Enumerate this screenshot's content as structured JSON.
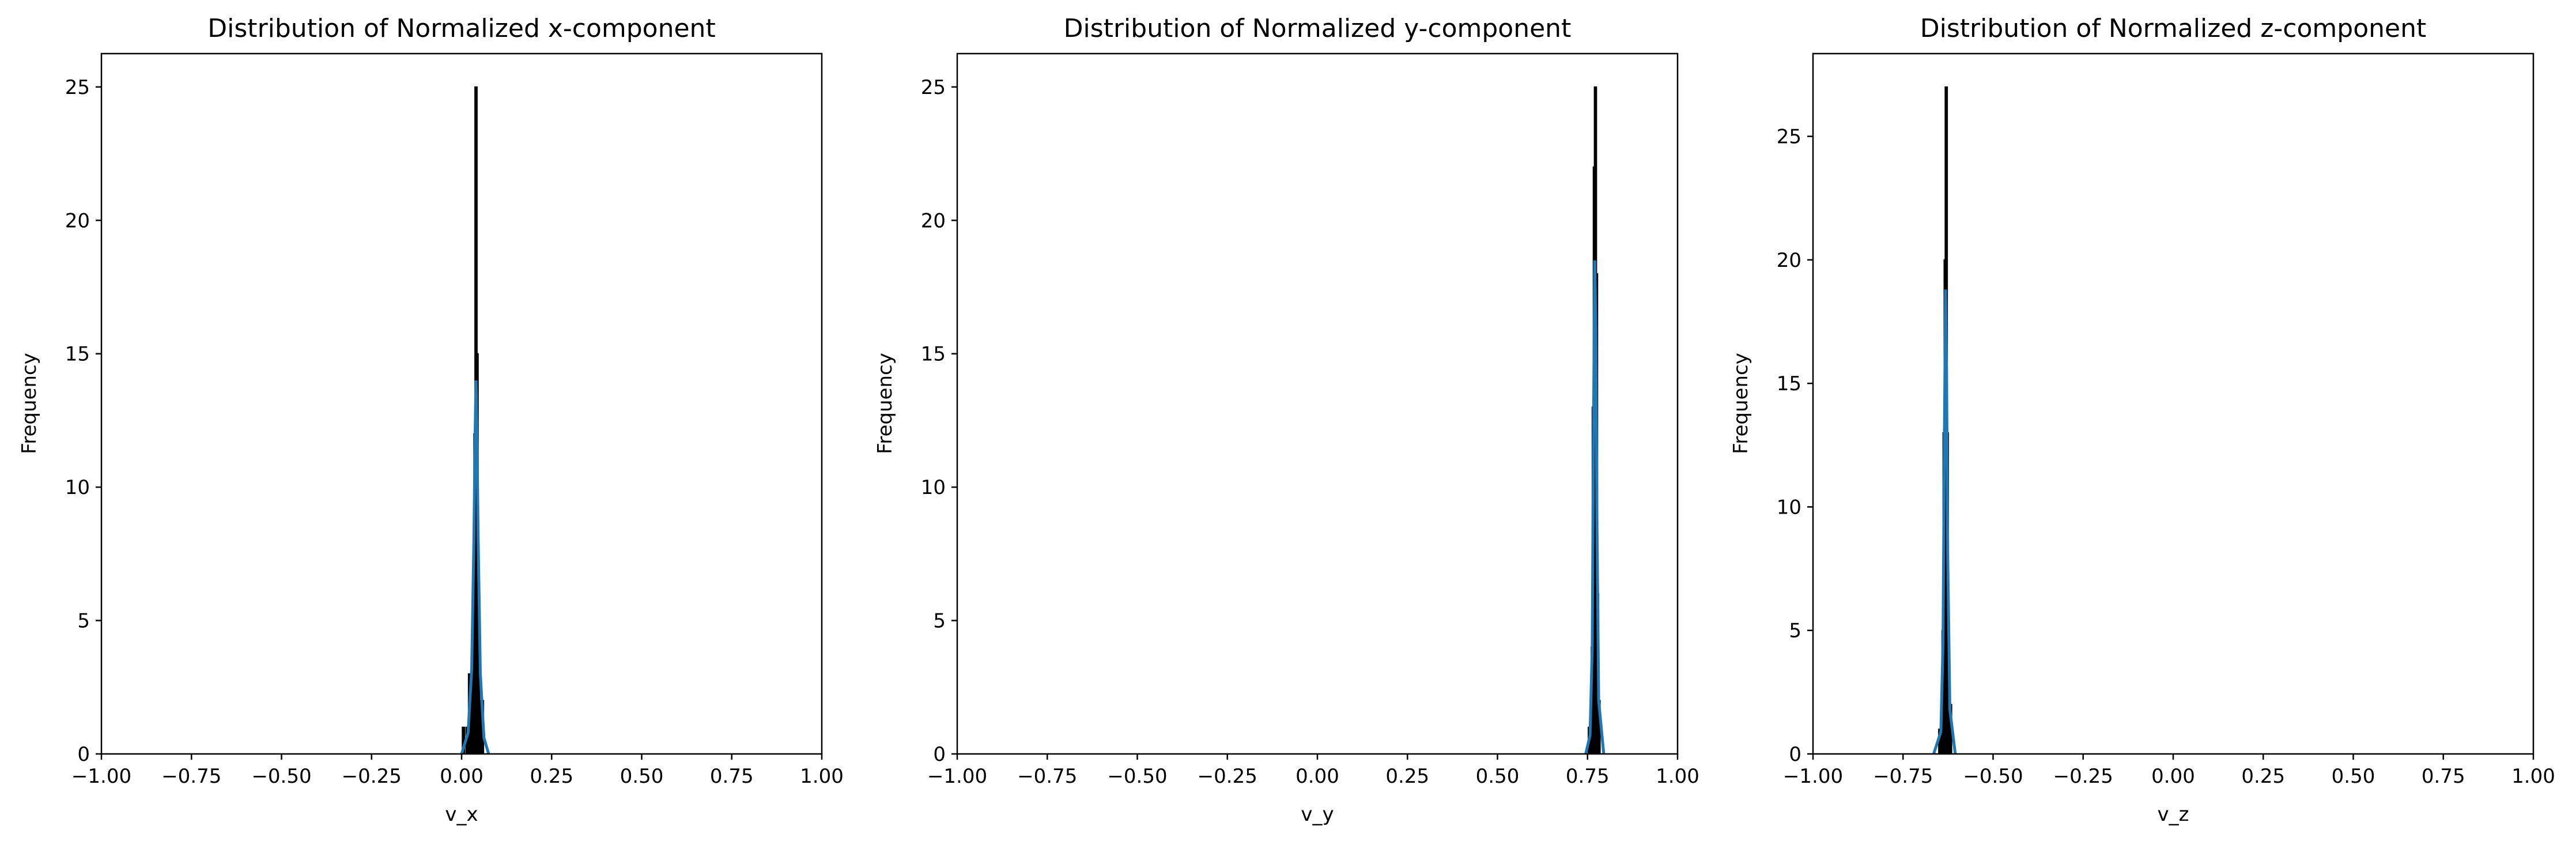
{
  "colors": {
    "kde": "#1f77b4",
    "bar_edge": "#000000",
    "frame": "#000000"
  },
  "chart_data": [
    {
      "type": "bar",
      "title": "Distribution of Normalized x-component",
      "xlabel": "v_x",
      "ylabel": "Frequency",
      "xlim": [
        -1.0,
        1.0
      ],
      "ylim": [
        0,
        26.25
      ],
      "xticks": [
        "−1.00",
        "−0.75",
        "−0.50",
        "−0.25",
        "0.00",
        "0.25",
        "0.50",
        "0.75",
        "1.00"
      ],
      "xtick_values": [
        -1.0,
        -0.75,
        -0.5,
        -0.25,
        0.0,
        0.25,
        0.5,
        0.75,
        1.0
      ],
      "yticks": [
        "0",
        "5",
        "10",
        "15",
        "20",
        "25"
      ],
      "ytick_values": [
        0,
        5,
        10,
        15,
        20,
        25
      ],
      "bins": [
        {
          "x": 0.005,
          "count": 1
        },
        {
          "x": 0.015,
          "count": 1
        },
        {
          "x": 0.022,
          "count": 3
        },
        {
          "x": 0.028,
          "count": 3
        },
        {
          "x": 0.033,
          "count": 6
        },
        {
          "x": 0.037,
          "count": 12
        },
        {
          "x": 0.04,
          "count": 25
        },
        {
          "x": 0.043,
          "count": 15
        },
        {
          "x": 0.047,
          "count": 5
        },
        {
          "x": 0.052,
          "count": 2
        },
        {
          "x": 0.058,
          "count": 2
        }
      ],
      "kde": [
        {
          "x": 0.0,
          "y": 0
        },
        {
          "x": 0.018,
          "y": 0.8
        },
        {
          "x": 0.028,
          "y": 3.2
        },
        {
          "x": 0.034,
          "y": 8
        },
        {
          "x": 0.038,
          "y": 12.5
        },
        {
          "x": 0.04,
          "y": 14
        },
        {
          "x": 0.042,
          "y": 12.5
        },
        {
          "x": 0.046,
          "y": 8
        },
        {
          "x": 0.052,
          "y": 3
        },
        {
          "x": 0.062,
          "y": 0.6
        },
        {
          "x": 0.075,
          "y": 0
        }
      ]
    },
    {
      "type": "bar",
      "title": "Distribution of Normalized y-component",
      "xlabel": "v_y",
      "ylabel": "Frequency",
      "xlim": [
        -1.0,
        1.0
      ],
      "ylim": [
        0,
        26.25
      ],
      "xticks": [
        "−1.00",
        "−0.75",
        "−0.50",
        "−0.25",
        "0.00",
        "0.25",
        "0.50",
        "0.75",
        "1.00"
      ],
      "xtick_values": [
        -1.0,
        -0.75,
        -0.5,
        -0.25,
        0.0,
        0.25,
        0.5,
        0.75,
        1.0
      ],
      "yticks": [
        "0",
        "5",
        "10",
        "15",
        "20",
        "25"
      ],
      "ytick_values": [
        0,
        5,
        10,
        15,
        20,
        25
      ],
      "bins": [
        {
          "x": 0.755,
          "count": 1
        },
        {
          "x": 0.76,
          "count": 1
        },
        {
          "x": 0.763,
          "count": 4
        },
        {
          "x": 0.766,
          "count": 13
        },
        {
          "x": 0.769,
          "count": 22
        },
        {
          "x": 0.772,
          "count": 25
        },
        {
          "x": 0.775,
          "count": 18
        },
        {
          "x": 0.778,
          "count": 6
        },
        {
          "x": 0.782,
          "count": 2
        }
      ],
      "kde": [
        {
          "x": 0.745,
          "y": 0
        },
        {
          "x": 0.757,
          "y": 0.7
        },
        {
          "x": 0.763,
          "y": 4
        },
        {
          "x": 0.767,
          "y": 13
        },
        {
          "x": 0.77,
          "y": 18.5
        },
        {
          "x": 0.773,
          "y": 16
        },
        {
          "x": 0.776,
          "y": 9
        },
        {
          "x": 0.781,
          "y": 2
        },
        {
          "x": 0.795,
          "y": 0
        }
      ]
    },
    {
      "type": "bar",
      "title": "Distribution of Normalized z-component",
      "xlabel": "v_z",
      "ylabel": "Frequency",
      "xlim": [
        -1.0,
        1.0
      ],
      "ylim": [
        0,
        28.35
      ],
      "xticks": [
        "−1.00",
        "−0.75",
        "−0.50",
        "−0.25",
        "0.00",
        "0.25",
        "0.50",
        "0.75",
        "1.00"
      ],
      "xtick_values": [
        -1.0,
        -0.75,
        -0.5,
        -0.25,
        0.0,
        0.25,
        0.5,
        0.75,
        1.0
      ],
      "yticks": [
        "0",
        "5",
        "10",
        "15",
        "20",
        "25"
      ],
      "ytick_values": [
        0,
        5,
        10,
        15,
        20,
        25
      ],
      "bins": [
        {
          "x": -0.648,
          "count": 1
        },
        {
          "x": -0.643,
          "count": 1
        },
        {
          "x": -0.639,
          "count": 5
        },
        {
          "x": -0.636,
          "count": 13
        },
        {
          "x": -0.633,
          "count": 20
        },
        {
          "x": -0.63,
          "count": 27
        },
        {
          "x": -0.627,
          "count": 13
        },
        {
          "x": -0.623,
          "count": 4
        },
        {
          "x": -0.618,
          "count": 2
        }
      ],
      "kde": [
        {
          "x": -0.665,
          "y": 0
        },
        {
          "x": -0.645,
          "y": 0.9
        },
        {
          "x": -0.639,
          "y": 4.5
        },
        {
          "x": -0.635,
          "y": 13
        },
        {
          "x": -0.632,
          "y": 18.8
        },
        {
          "x": -0.629,
          "y": 15
        },
        {
          "x": -0.626,
          "y": 8
        },
        {
          "x": -0.62,
          "y": 1.8
        },
        {
          "x": -0.605,
          "y": 0
        }
      ]
    }
  ]
}
